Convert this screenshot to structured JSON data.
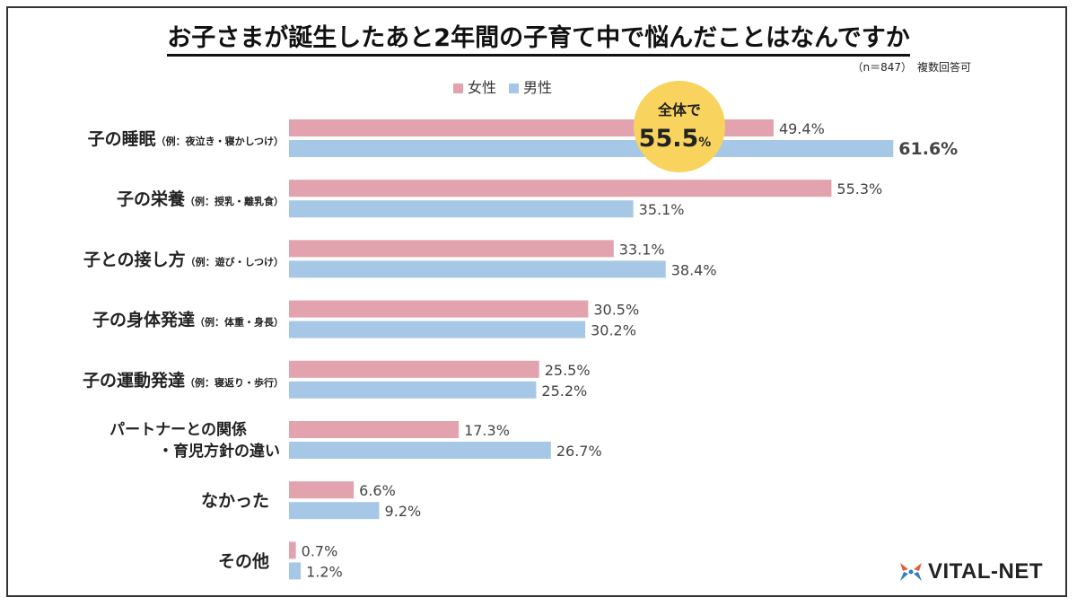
{
  "chart_data": {
    "type": "bar",
    "orientation": "horizontal",
    "title": "お子さまが誕生したあと2年間の子育て中で悩んだことはなんですか",
    "note": "（n＝847）　複数回答可",
    "categories": [
      {
        "main": "子の睡眠",
        "sub": "（例：夜泣き・寝かしつけ）"
      },
      {
        "main": "子の栄養",
        "sub": "（例：授乳・離乳食）"
      },
      {
        "main": "子との接し方",
        "sub": "（例：遊び・しつけ）"
      },
      {
        "main": "子の身体発達",
        "sub": "（例：体重・身長）"
      },
      {
        "main": "子の運動発達",
        "sub": "（例：寝返り・歩行）"
      },
      {
        "main": "パートナーとの関係",
        "main2": "・育児方針の違い",
        "sub": ""
      },
      {
        "main": "なかった",
        "sub": ""
      },
      {
        "main": "その他",
        "sub": ""
      }
    ],
    "series": [
      {
        "name": "女性",
        "color": "#E2A3AE",
        "values": [
          49.4,
          55.3,
          33.1,
          30.5,
          25.5,
          17.3,
          6.6,
          0.7
        ]
      },
      {
        "name": "男性",
        "color": "#A7C7E7",
        "values": [
          61.6,
          35.1,
          38.4,
          30.2,
          25.2,
          26.7,
          9.2,
          1.2
        ]
      }
    ],
    "value_suffix": "%",
    "grid": false,
    "legend_position": "top-center",
    "callout": {
      "label": "全体で",
      "value": "55.5",
      "unit": "%",
      "color": "#F8D35E"
    }
  },
  "brand": {
    "name": "VITAL-NET"
  }
}
